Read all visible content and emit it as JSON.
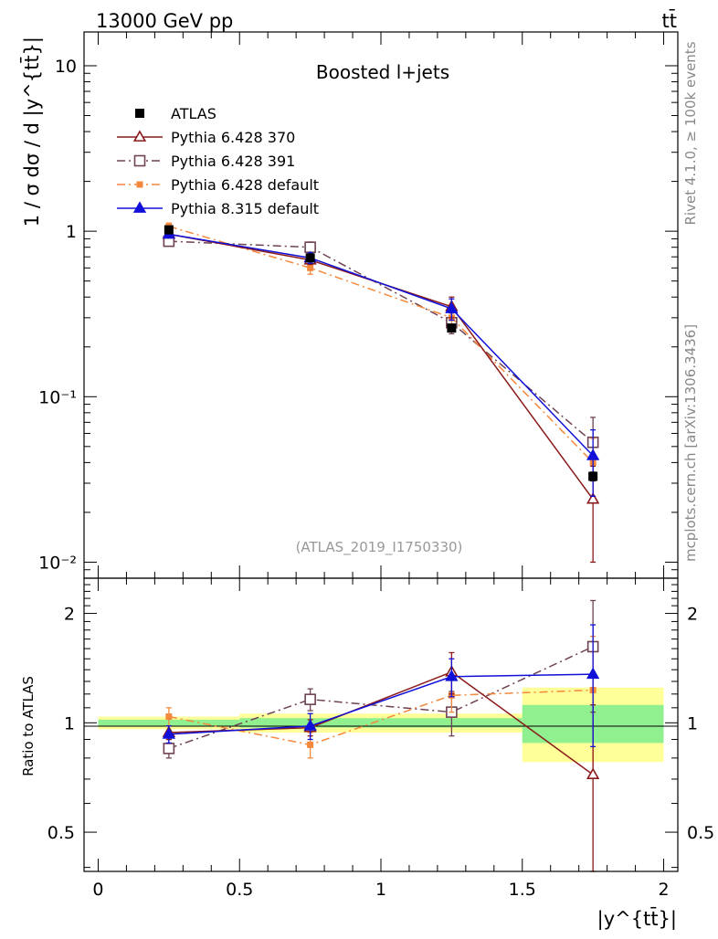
{
  "header": {
    "energy_label": "13000 GeV pp",
    "process_label": "tt̄"
  },
  "side_labels": {
    "rivet": "Rivet 4.1.0, ≥ 100k events",
    "mcplots": "mcplots.cern.ch [arXiv:1306.3436]"
  },
  "colors": {
    "ATLAS": "#000000",
    "Pythia 6.428 370": "#8b1a1a",
    "Pythia 6.428 391": "#6e4252",
    "Pythia 6.428 default": "#f4883c",
    "Pythia 8.315 default": "#1010d8",
    "band_inner": "#90f090",
    "band_outer": "#ffff99"
  },
  "chart_data": [
    {
      "type": "line",
      "panel": "main",
      "title": "Boosted l+jets",
      "analysis_label": "(ATLAS_2019_I1750330)",
      "ylabel": "1 / σ dσ / d |y^{tt̄}|",
      "yscale": "log",
      "ylim": [
        0.008,
        16
      ],
      "xlim": [
        -0.05,
        2.05
      ],
      "ytick_labels": [
        "10⁻²",
        "10⁻¹",
        "1",
        "10"
      ],
      "ytick_values": [
        0.01,
        0.1,
        1,
        10
      ],
      "x": [
        0.25,
        0.75,
        1.25,
        1.75
      ],
      "series": [
        {
          "name": "ATLAS",
          "marker": "filled-square",
          "values": [
            1.02,
            0.69,
            0.26,
            0.033
          ],
          "errors": [
            0.03,
            0.02,
            0.01,
            0.002
          ]
        },
        {
          "name": "Pythia 6.428 370",
          "marker": "open-triangle",
          "line": "solid",
          "values": [
            0.96,
            0.67,
            0.35,
            0.024
          ],
          "errors": [
            0.04,
            0.04,
            0.05,
            0.014
          ]
        },
        {
          "name": "Pythia 6.428 391",
          "marker": "open-square",
          "line": "dash-dot",
          "values": [
            0.87,
            0.8,
            0.28,
            0.053
          ],
          "errors": [
            0.04,
            0.06,
            0.04,
            0.022
          ]
        },
        {
          "name": "Pythia 6.428 default",
          "marker": "filled-small-square",
          "line": "dash-dot",
          "values": [
            1.07,
            0.6,
            0.3,
            0.04
          ],
          "errors": [
            0.05,
            0.05,
            0.04,
            0.016
          ]
        },
        {
          "name": "Pythia 8.315 default",
          "marker": "filled-triangle",
          "line": "solid",
          "values": [
            0.96,
            0.69,
            0.34,
            0.044
          ],
          "errors": [
            0.04,
            0.05,
            0.05,
            0.019
          ]
        }
      ]
    },
    {
      "type": "line",
      "panel": "ratio",
      "xlabel": "|y^{tt̄}|",
      "ylabel": "Ratio to ATLAS",
      "yscale": "log",
      "ylim": [
        0.39,
        2.5
      ],
      "xlim": [
        -0.05,
        2.05
      ],
      "ytick_labels": [
        "0.5",
        "1",
        "2"
      ],
      "ytick_values": [
        0.5,
        1,
        2
      ],
      "xtick_labels": [
        "0",
        "0.5",
        "1",
        "1.5",
        "2"
      ],
      "xtick_values": [
        0,
        0.5,
        1,
        1.5,
        2
      ],
      "x": [
        0.25,
        0.75,
        1.25,
        1.75
      ],
      "bands": [
        {
          "x0": 0.0,
          "x1": 0.5,
          "inner": [
            0.98,
            1.02
          ],
          "outer": [
            0.96,
            1.04
          ]
        },
        {
          "x0": 0.5,
          "x1": 1.0,
          "inner": [
            0.97,
            1.03
          ],
          "outer": [
            0.94,
            1.06
          ]
        },
        {
          "x0": 1.0,
          "x1": 1.5,
          "inner": [
            0.97,
            1.03
          ],
          "outer": [
            0.94,
            1.06
          ]
        },
        {
          "x0": 1.5,
          "x1": 2.0,
          "inner": [
            0.88,
            1.12
          ],
          "outer": [
            0.78,
            1.25
          ]
        }
      ],
      "series": [
        {
          "name": "Pythia 6.428 370",
          "values": [
            0.94,
            0.97,
            1.38,
            0.72
          ],
          "errors": [
            0.04,
            0.05,
            0.18,
            0.4
          ]
        },
        {
          "name": "Pythia 6.428 391",
          "values": [
            0.85,
            1.16,
            1.07,
            1.62
          ],
          "errors": [
            0.05,
            0.08,
            0.15,
            0.55
          ]
        },
        {
          "name": "Pythia 6.428 default",
          "values": [
            1.04,
            0.87,
            1.19,
            1.23
          ],
          "errors": [
            0.06,
            0.07,
            0.12,
            0.5
          ]
        },
        {
          "name": "Pythia 8.315 default",
          "values": [
            0.93,
            0.98,
            1.34,
            1.36
          ],
          "errors": [
            0.05,
            0.08,
            0.16,
            0.5
          ]
        }
      ]
    }
  ]
}
